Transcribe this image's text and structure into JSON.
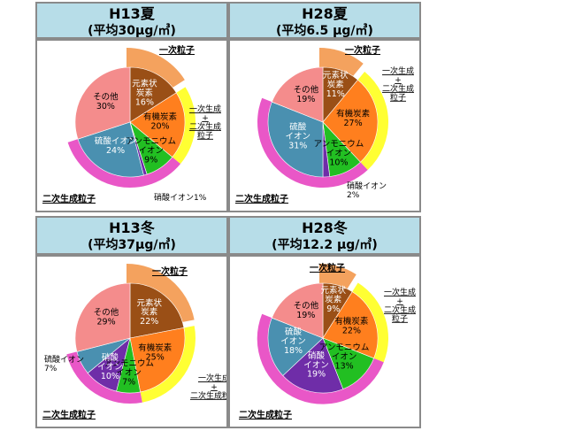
{
  "colors": {
    "primary_ring": "#f4a25e",
    "secondary_ring": "#e957c7",
    "combined_ring": "#ffff33",
    "elemental_carbon": "#9a4f16",
    "organic_carbon": "#ff7f1e",
    "ammonium": "#22bf22",
    "nitrate": "#6f2da8",
    "sulfate": "#4a90b0",
    "other": "#f48c8c",
    "title_bg": "#b7dde8",
    "slice_text_dark": "#ffffff",
    "slice_text_light": "#000000"
  },
  "chart_data": [
    {
      "type": "pie",
      "title": "H13夏",
      "subtitle": "(平均30μg/㎥)",
      "slices": [
        {
          "key": "ec",
          "label": "元素状\n炭素",
          "value": 16,
          "text": "16%"
        },
        {
          "key": "oc",
          "label": "有機炭素",
          "value": 20,
          "text": "20%"
        },
        {
          "key": "amm",
          "label": "アンモニウム\nイオン",
          "value": 9,
          "text": "9%"
        },
        {
          "key": "nit",
          "label": "",
          "value": 1,
          "text": ""
        },
        {
          "key": "sul",
          "label": "硫酸イオン",
          "value": 24,
          "text": "24%"
        },
        {
          "key": "oth",
          "label": "その他",
          "value": 30,
          "text": "30%"
        }
      ],
      "annotations": {
        "primary": "一次粒子",
        "combined": "一次生成\n+\n二次生成\n粒子",
        "secondary": "二次生成粒子",
        "nitrate": "硝酸イオン1%"
      }
    },
    {
      "type": "pie",
      "title": "H28夏",
      "subtitle": "(平均6.5 μg/㎥)",
      "slices": [
        {
          "key": "ec",
          "label": "元素状\n炭素",
          "value": 11,
          "text": "11%"
        },
        {
          "key": "oc",
          "label": "有機炭素",
          "value": 27,
          "text": "27%"
        },
        {
          "key": "amm",
          "label": "アンモニウム\nイオン",
          "value": 10,
          "text": "10%"
        },
        {
          "key": "nit",
          "label": "",
          "value": 2,
          "text": ""
        },
        {
          "key": "sul",
          "label": "硫酸\nイオン",
          "value": 31,
          "text": "31%"
        },
        {
          "key": "oth",
          "label": "その他",
          "value": 19,
          "text": "19%"
        }
      ],
      "annotations": {
        "primary": "一次粒子",
        "combined": "一次生成\n+\n二次生成\n粒子",
        "secondary": "二次生成粒子",
        "nitrate": "硝酸イオン\n2%"
      }
    },
    {
      "type": "pie",
      "title": "H13冬",
      "subtitle": "(平均37μg/㎥)",
      "slices": [
        {
          "key": "ec",
          "label": "元素状\n炭素",
          "value": 22,
          "text": "22%"
        },
        {
          "key": "oc",
          "label": "有機炭素",
          "value": 25,
          "text": "25%"
        },
        {
          "key": "amm",
          "label": "アンモニウム\nイオン",
          "value": 7,
          "text": "7%"
        },
        {
          "key": "nit",
          "label": "硝酸\nイオン",
          "value": 10,
          "text": "10%"
        },
        {
          "key": "sul",
          "label": "",
          "value": 7,
          "text": ""
        },
        {
          "key": "oth",
          "label": "その他",
          "value": 29,
          "text": "29%"
        }
      ],
      "annotations": {
        "primary": "一次粒子",
        "combined": "一次生成\n+\n二次生成粒子",
        "secondary": "二次生成粒子",
        "sulfate": "硫酸イオン\n7%"
      }
    },
    {
      "type": "pie",
      "title": "H28冬",
      "subtitle": "(平均12.2 μg/㎥)",
      "slices": [
        {
          "key": "ec",
          "label": "元素状\n炭素",
          "value": 9,
          "text": "9%"
        },
        {
          "key": "oc",
          "label": "有機炭素",
          "value": 22,
          "text": "22%"
        },
        {
          "key": "amm",
          "label": "アンモニウム\nイオン",
          "value": 13,
          "text": "13%"
        },
        {
          "key": "nit",
          "label": "硝酸\nイオン",
          "value": 19,
          "text": "19%"
        },
        {
          "key": "sul",
          "label": "硫酸\nイオン",
          "value": 18,
          "text": "18%"
        },
        {
          "key": "oth",
          "label": "その他",
          "value": 19,
          "text": "19%"
        }
      ],
      "annotations": {
        "primary": "一次粒子",
        "combined": "一次生成\n+\n二次生成\n粒子",
        "secondary": "二次生成粒子"
      }
    }
  ]
}
